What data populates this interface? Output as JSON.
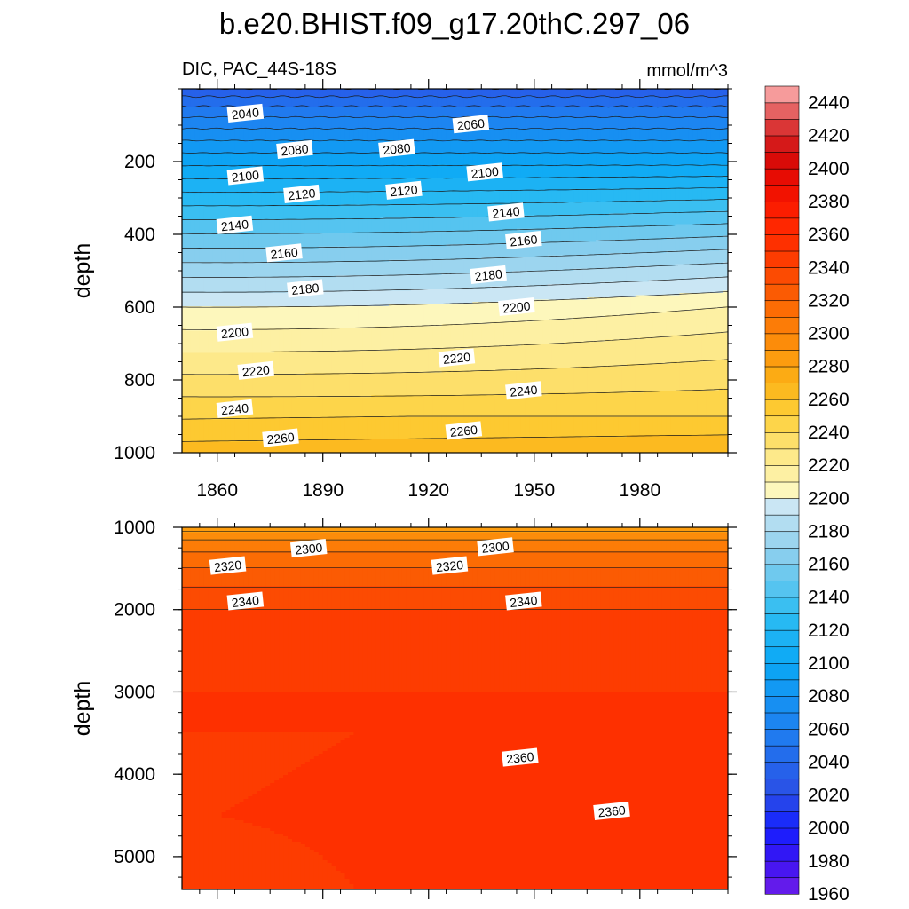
{
  "title": "b.e20.BHIST.f09_g17.20thC.297_06",
  "variable_label": "DIC, PAC_44S-18S",
  "units_label": "mmol/m^3",
  "colors": {
    "low": "#7f1fe6",
    "mid_blue": "#29a8f2",
    "break_light": "#fdfbc8",
    "high_red": "#ff2200",
    "top": "#ffb8b8"
  },
  "chart_data": [
    {
      "type": "heatmap",
      "panel": "upper",
      "xlabel": "",
      "ylabel": "depth",
      "xlim": [
        1850,
        2005
      ],
      "ylim": [
        0,
        1000
      ],
      "y_inverted": true,
      "x_ticks": [
        "1860",
        "1890",
        "1920",
        "1950",
        "1980"
      ],
      "x_tick_values": [
        1860,
        1890,
        1920,
        1950,
        1980
      ],
      "y_ticks": [
        "200",
        "400",
        "600",
        "800",
        "1000"
      ],
      "y_tick_values": [
        200,
        400,
        600,
        800,
        1000
      ],
      "contour_interval": 10,
      "contour_labels": [
        {
          "text": "2040",
          "x": 1868,
          "y": 68
        },
        {
          "text": "2060",
          "x": 1932,
          "y": 98
        },
        {
          "text": "2080",
          "x": 1882,
          "y": 168
        },
        {
          "text": "2080",
          "x": 1911,
          "y": 165
        },
        {
          "text": "2100",
          "x": 1868,
          "y": 240
        },
        {
          "text": "2100",
          "x": 1936,
          "y": 230
        },
        {
          "text": "2120",
          "x": 1884,
          "y": 290
        },
        {
          "text": "2120",
          "x": 1913,
          "y": 280
        },
        {
          "text": "2140",
          "x": 1865,
          "y": 375
        },
        {
          "text": "2140",
          "x": 1942,
          "y": 340
        },
        {
          "text": "2160",
          "x": 1879,
          "y": 452
        },
        {
          "text": "2160",
          "x": 1947,
          "y": 417
        },
        {
          "text": "2180",
          "x": 1885,
          "y": 550
        },
        {
          "text": "2180",
          "x": 1937,
          "y": 512
        },
        {
          "text": "2200",
          "x": 1865,
          "y": 670
        },
        {
          "text": "2200",
          "x": 1945,
          "y": 600
        },
        {
          "text": "2220",
          "x": 1871,
          "y": 775
        },
        {
          "text": "2220",
          "x": 1928,
          "y": 740
        },
        {
          "text": "2240",
          "x": 1865,
          "y": 880
        },
        {
          "text": "2240",
          "x": 1947,
          "y": 830
        },
        {
          "text": "2260",
          "x": 1878,
          "y": 960
        },
        {
          "text": "2260",
          "x": 1930,
          "y": 940
        }
      ]
    },
    {
      "type": "heatmap",
      "panel": "lower",
      "xlabel": "",
      "ylabel": "depth",
      "xlim": [
        1850,
        2005
      ],
      "ylim": [
        1000,
        5400
      ],
      "y_inverted": true,
      "x_ticks": [],
      "x_tick_values": [
        1860,
        1890,
        1920,
        1950,
        1980
      ],
      "y_ticks": [
        "1000",
        "2000",
        "3000",
        "4000",
        "5000"
      ],
      "y_tick_values": [
        1000,
        2000,
        3000,
        4000,
        5000
      ],
      "contour_interval": 10,
      "contour_labels": [
        {
          "text": "2300",
          "x": 1886,
          "y": 1260
        },
        {
          "text": "2300",
          "x": 1939,
          "y": 1240
        },
        {
          "text": "2320",
          "x": 1863,
          "y": 1470
        },
        {
          "text": "2320",
          "x": 1926,
          "y": 1470
        },
        {
          "text": "2340",
          "x": 1868,
          "y": 1900
        },
        {
          "text": "2340",
          "x": 1947,
          "y": 1900
        },
        {
          "text": "2360",
          "x": 1946,
          "y": 3800
        },
        {
          "text": "2360",
          "x": 1972,
          "y": 4450
        }
      ]
    }
  ],
  "colorbar": {
    "levels": [
      1960,
      1970,
      1980,
      1990,
      2000,
      2010,
      2020,
      2030,
      2040,
      2050,
      2060,
      2070,
      2080,
      2090,
      2100,
      2110,
      2120,
      2130,
      2140,
      2150,
      2160,
      2170,
      2180,
      2190,
      2200,
      2210,
      2220,
      2230,
      2240,
      2250,
      2260,
      2270,
      2280,
      2290,
      2300,
      2310,
      2320,
      2330,
      2340,
      2350,
      2360,
      2370,
      2380,
      2390,
      2400,
      2410,
      2420,
      2430,
      2440,
      2450
    ],
    "labels": [
      "1960",
      "1980",
      "2000",
      "2020",
      "2040",
      "2060",
      "2080",
      "2100",
      "2120",
      "2140",
      "2160",
      "2180",
      "2200",
      "2220",
      "2240",
      "2260",
      "2280",
      "2300",
      "2320",
      "2340",
      "2360",
      "2380",
      "2400",
      "2420",
      "2440"
    ]
  }
}
